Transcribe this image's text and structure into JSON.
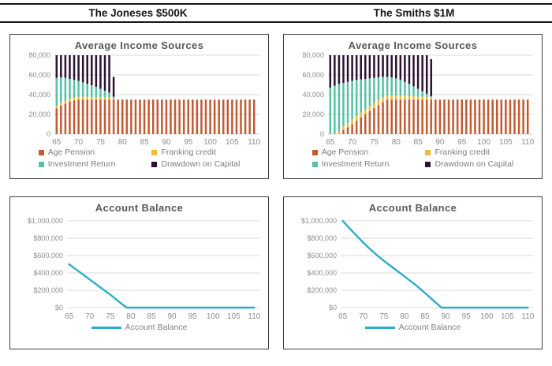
{
  "header": {
    "left_title": "The Joneses $500K",
    "right_title": "The Smiths $1M"
  },
  "colors": {
    "age_pension": "#C25A33",
    "franking_credit": "#EDBC33",
    "investment_return": "#57C1A5",
    "drawdown": "#2D1133",
    "balance_line": "#2CAEC6",
    "grid_line": "#D8D8D8",
    "axis_text": "#8C8C8C",
    "title_text": "#595959",
    "legend_text": "#837B83",
    "panel_border": "#3F3F3F",
    "header_text": "#151515"
  },
  "chart_data": [
    {
      "id": "joneses-income",
      "type": "bar",
      "stacked": true,
      "title": "Average Income Sources",
      "grid": true,
      "legend_position": "bottom",
      "ylim": [
        0,
        80000
      ],
      "yticks": [
        {
          "value": 0,
          "label": "0"
        },
        {
          "value": 20000,
          "label": "20,000"
        },
        {
          "value": 40000,
          "label": "40,000"
        },
        {
          "value": 60000,
          "label": "60,000"
        },
        {
          "value": 80000,
          "label": "80,000"
        }
      ],
      "xticks": [
        65,
        70,
        75,
        80,
        85,
        90,
        95,
        100,
        105,
        110
      ],
      "ages": [
        65,
        66,
        67,
        68,
        69,
        70,
        71,
        72,
        73,
        74,
        75,
        76,
        77,
        78,
        79,
        80,
        81,
        82,
        83,
        84,
        85,
        86,
        87,
        88,
        89,
        90,
        91,
        92,
        93,
        94,
        95,
        96,
        97,
        98,
        99,
        100,
        101,
        102,
        103,
        104,
        105,
        106,
        107,
        108,
        109,
        110
      ],
      "series": [
        {
          "name": "Age Pension",
          "color": "#C25A33",
          "values": [
            26000,
            29000,
            31000,
            33000,
            34000,
            35000,
            35000,
            35000,
            35000,
            35000,
            35000,
            35000,
            35000,
            35000,
            35000,
            35000,
            35000,
            35000,
            35000,
            35000,
            35000,
            35000,
            35000,
            35000,
            35000,
            35000,
            35000,
            35000,
            35000,
            35000,
            35000,
            35000,
            35000,
            35000,
            35000,
            35000,
            35000,
            35000,
            35000,
            35000,
            35000,
            35000,
            35000,
            35000,
            35000,
            35000
          ]
        },
        {
          "name": "Franking credit",
          "color": "#EDBC33",
          "values": [
            2500,
            3000,
            3000,
            3000,
            3000,
            3000,
            3000,
            3000,
            2500,
            2500,
            2000,
            2000,
            2000,
            1000,
            0,
            0,
            0,
            0,
            0,
            0,
            0,
            0,
            0,
            0,
            0,
            0,
            0,
            0,
            0,
            0,
            0,
            0,
            0,
            0,
            0,
            0,
            0,
            0,
            0,
            0,
            0,
            0,
            0,
            0,
            0,
            0
          ]
        },
        {
          "name": "Investment Return",
          "color": "#57C1A5",
          "values": [
            28500,
            25500,
            23000,
            20000,
            18000,
            16000,
            14500,
            13000,
            12000,
            10500,
            9000,
            7000,
            5000,
            2000,
            0,
            0,
            0,
            0,
            0,
            0,
            0,
            0,
            0,
            0,
            0,
            0,
            0,
            0,
            0,
            0,
            0,
            0,
            0,
            0,
            0,
            0,
            0,
            0,
            0,
            0,
            0,
            0,
            0,
            0,
            0,
            0
          ]
        },
        {
          "name": "Drawdown on Capital",
          "color": "#2D1133",
          "values": [
            23000,
            22500,
            23000,
            24000,
            25000,
            26000,
            27500,
            29000,
            30500,
            32000,
            34000,
            36000,
            38000,
            20000,
            0,
            0,
            0,
            0,
            0,
            0,
            0,
            0,
            0,
            0,
            0,
            0,
            0,
            0,
            0,
            0,
            0,
            0,
            0,
            0,
            0,
            0,
            0,
            0,
            0,
            0,
            0,
            0,
            0,
            0,
            0,
            0
          ]
        }
      ]
    },
    {
      "id": "smiths-income",
      "type": "bar",
      "stacked": true,
      "title": "Average Income Sources",
      "grid": true,
      "legend_position": "bottom",
      "ylim": [
        0,
        80000
      ],
      "yticks": [
        {
          "value": 0,
          "label": "0"
        },
        {
          "value": 20000,
          "label": "20,000"
        },
        {
          "value": 40000,
          "label": "40,000"
        },
        {
          "value": 60000,
          "label": "60,000"
        },
        {
          "value": 80000,
          "label": "80,000"
        }
      ],
      "xticks": [
        65,
        70,
        75,
        80,
        85,
        90,
        95,
        100,
        105,
        110
      ],
      "ages": [
        65,
        66,
        67,
        68,
        69,
        70,
        71,
        72,
        73,
        74,
        75,
        76,
        77,
        78,
        79,
        80,
        81,
        82,
        83,
        84,
        85,
        86,
        87,
        88,
        89,
        90,
        91,
        92,
        93,
        94,
        95,
        96,
        97,
        98,
        99,
        100,
        101,
        102,
        103,
        104,
        105,
        106,
        107,
        108,
        109,
        110
      ],
      "series": [
        {
          "name": "Age Pension",
          "color": "#C25A33",
          "values": [
            0,
            0,
            0,
            4000,
            7000,
            10000,
            13500,
            17000,
            20000,
            23500,
            26500,
            29500,
            32500,
            35000,
            35000,
            35000,
            35000,
            35000,
            35000,
            35000,
            35000,
            35000,
            35000,
            35000,
            35000,
            35000,
            35000,
            35000,
            35000,
            35000,
            35000,
            35000,
            35000,
            35000,
            35000,
            35000,
            35000,
            35000,
            35000,
            35000,
            35000,
            35000,
            35000,
            35000,
            35000,
            35000
          ]
        },
        {
          "name": "Franking credit",
          "color": "#EDBC33",
          "values": [
            0,
            0,
            3000,
            4000,
            4500,
            5000,
            5000,
            5000,
            5000,
            5000,
            5000,
            5000,
            4500,
            4000,
            4000,
            4000,
            4000,
            4000,
            3500,
            3500,
            3000,
            3000,
            2500,
            2500,
            0,
            0,
            0,
            0,
            0,
            0,
            0,
            0,
            0,
            0,
            0,
            0,
            0,
            0,
            0,
            0,
            0,
            0,
            0,
            0,
            0,
            0
          ]
        },
        {
          "name": "Investment Return",
          "color": "#57C1A5",
          "values": [
            47000,
            49000,
            48000,
            44000,
            41500,
            39000,
            36500,
            33500,
            31000,
            28000,
            25500,
            23000,
            21000,
            19000,
            18500,
            17500,
            16000,
            14000,
            12500,
            10000,
            8000,
            5500,
            3500,
            1000,
            0,
            0,
            0,
            0,
            0,
            0,
            0,
            0,
            0,
            0,
            0,
            0,
            0,
            0,
            0,
            0,
            0,
            0,
            0,
            0,
            0,
            0
          ]
        },
        {
          "name": "Drawdown on Capital",
          "color": "#2D1133",
          "values": [
            33000,
            31000,
            29000,
            28000,
            27000,
            26000,
            25000,
            24500,
            24000,
            23500,
            23000,
            22500,
            22000,
            22000,
            22500,
            23500,
            25000,
            27000,
            29000,
            31500,
            34000,
            36500,
            39000,
            37500,
            0,
            0,
            0,
            0,
            0,
            0,
            0,
            0,
            0,
            0,
            0,
            0,
            0,
            0,
            0,
            0,
            0,
            0,
            0,
            0,
            0,
            0
          ]
        }
      ]
    },
    {
      "id": "joneses-balance",
      "type": "line",
      "title": "Account Balance",
      "grid": true,
      "legend_position": "bottom",
      "ylim": [
        0,
        1000000
      ],
      "yticks": [
        {
          "value": 0,
          "label": "$0"
        },
        {
          "value": 200000,
          "label": "$200,000"
        },
        {
          "value": 400000,
          "label": "$400,000"
        },
        {
          "value": 600000,
          "label": "$600,000"
        },
        {
          "value": 800000,
          "label": "$800,000"
        },
        {
          "value": 1000000,
          "label": "$1,000,000"
        }
      ],
      "xticks": [
        65,
        70,
        75,
        80,
        85,
        90,
        95,
        100,
        105,
        110
      ],
      "ages": [
        65,
        66,
        67,
        68,
        69,
        70,
        71,
        72,
        73,
        74,
        75,
        76,
        77,
        78,
        79,
        80,
        81,
        82,
        83,
        84,
        85,
        86,
        87,
        88,
        89,
        90,
        91,
        92,
        93,
        94,
        95,
        96,
        97,
        98,
        99,
        100,
        101,
        102,
        103,
        104,
        105,
        106,
        107,
        108,
        109,
        110
      ],
      "series": [
        {
          "name": "Account Balance",
          "color": "#2CAEC6",
          "values": [
            500000,
            465000,
            430000,
            395000,
            360000,
            325000,
            290000,
            255000,
            220000,
            185000,
            150000,
            112000,
            74000,
            36000,
            0,
            0,
            0,
            0,
            0,
            0,
            0,
            0,
            0,
            0,
            0,
            0,
            0,
            0,
            0,
            0,
            0,
            0,
            0,
            0,
            0,
            0,
            0,
            0,
            0,
            0,
            0,
            0,
            0,
            0,
            0,
            0
          ]
        }
      ]
    },
    {
      "id": "smiths-balance",
      "type": "line",
      "title": "Account Balance",
      "grid": true,
      "legend_position": "bottom",
      "ylim": [
        0,
        1000000
      ],
      "yticks": [
        {
          "value": 0,
          "label": "$0"
        },
        {
          "value": 200000,
          "label": "$200,000"
        },
        {
          "value": 400000,
          "label": "$400,000"
        },
        {
          "value": 600000,
          "label": "$600,000"
        },
        {
          "value": 800000,
          "label": "$800,000"
        },
        {
          "value": 1000000,
          "label": "$1,000,000"
        }
      ],
      "xticks": [
        65,
        70,
        75,
        80,
        85,
        90,
        95,
        100,
        105,
        110
      ],
      "ages": [
        65,
        66,
        67,
        68,
        69,
        70,
        71,
        72,
        73,
        74,
        75,
        76,
        77,
        78,
        79,
        80,
        81,
        82,
        83,
        84,
        85,
        86,
        87,
        88,
        89,
        90,
        91,
        92,
        93,
        94,
        95,
        96,
        97,
        98,
        99,
        100,
        101,
        102,
        103,
        104,
        105,
        106,
        107,
        108,
        109,
        110
      ],
      "series": [
        {
          "name": "Account Balance",
          "color": "#2CAEC6",
          "values": [
            1000000,
            948000,
            897000,
            847000,
            798000,
            750000,
            704000,
            660000,
            618000,
            578000,
            540000,
            504000,
            468000,
            432000,
            396000,
            360000,
            324000,
            288000,
            250000,
            210000,
            168000,
            126000,
            84000,
            42000,
            0,
            0,
            0,
            0,
            0,
            0,
            0,
            0,
            0,
            0,
            0,
            0,
            0,
            0,
            0,
            0,
            0,
            0,
            0,
            0,
            0,
            0
          ]
        }
      ]
    }
  ]
}
